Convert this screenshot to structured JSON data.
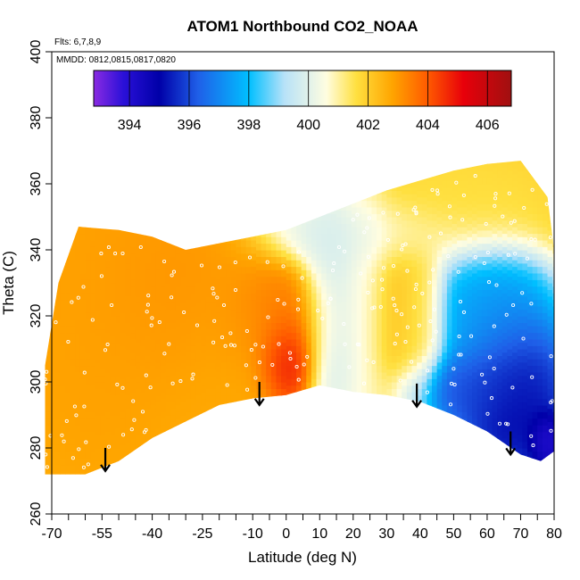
{
  "chart_data": {
    "type": "heatmap",
    "title": "ATOM1 Northbound CO2_NOAA",
    "annotations": [
      "Flts: 6,7,8,9",
      "MMDD: 0812,0815,0817,0820"
    ],
    "xlabel": "Latitude (deg N)",
    "ylabel": "Theta (C)",
    "xlim": [
      -70,
      80
    ],
    "ylim": [
      260,
      400
    ],
    "x_ticks_major": [
      -70,
      -55,
      -40,
      -25,
      -10,
      0,
      10,
      20,
      30,
      40,
      50,
      60,
      70,
      80
    ],
    "x_ticks_minor": [
      -65,
      -60,
      -50,
      -45,
      -35,
      -30,
      -20,
      -15,
      -5,
      5,
      15,
      25,
      35,
      45,
      55,
      65,
      75
    ],
    "y_ticks": [
      260,
      280,
      300,
      320,
      340,
      360,
      380,
      400
    ],
    "colorbar": {
      "ticks": [
        394,
        396,
        398,
        400,
        402,
        404,
        406
      ],
      "range": [
        392.8,
        406.8
      ],
      "stops": [
        {
          "v": 392.8,
          "c": "#8a2be2"
        },
        {
          "v": 393.8,
          "c": "#2a10d8"
        },
        {
          "v": 395.0,
          "c": "#0000a8"
        },
        {
          "v": 396.3,
          "c": "#1f5fe8"
        },
        {
          "v": 398.0,
          "c": "#00bfff"
        },
        {
          "v": 399.2,
          "c": "#b8e2f8"
        },
        {
          "v": 400.6,
          "c": "#fffde0"
        },
        {
          "v": 401.6,
          "c": "#ffe040"
        },
        {
          "v": 402.8,
          "c": "#ffa500"
        },
        {
          "v": 404.0,
          "c": "#ff5a00"
        },
        {
          "v": 405.2,
          "c": "#e8000a"
        },
        {
          "v": 406.8,
          "c": "#a01010"
        }
      ]
    },
    "field": {
      "boundary_bottom": [
        [
          -72,
          272
        ],
        [
          -60,
          272
        ],
        [
          -50,
          276
        ],
        [
          -40,
          283
        ],
        [
          -30,
          288
        ],
        [
          -20,
          293
        ],
        [
          -10,
          295
        ],
        [
          0,
          296
        ],
        [
          10,
          299
        ],
        [
          20,
          297
        ],
        [
          30,
          296
        ],
        [
          40,
          294
        ],
        [
          50,
          290
        ],
        [
          60,
          285
        ],
        [
          70,
          278
        ],
        [
          76,
          276
        ],
        [
          80,
          279
        ]
      ],
      "boundary_top": [
        [
          -72,
          305
        ],
        [
          -68,
          330
        ],
        [
          -62,
          347
        ],
        [
          -50,
          346
        ],
        [
          -40,
          344
        ],
        [
          -30,
          340
        ],
        [
          -20,
          342
        ],
        [
          -10,
          344
        ],
        [
          0,
          346
        ],
        [
          10,
          350
        ],
        [
          20,
          354
        ],
        [
          30,
          358
        ],
        [
          40,
          361
        ],
        [
          50,
          364
        ],
        [
          60,
          366
        ],
        [
          70,
          367
        ],
        [
          78,
          356
        ],
        [
          80,
          340
        ]
      ],
      "blobs": [
        {
          "x": -55,
          "y": 320,
          "sx": 15,
          "sy": 28,
          "v": 402.9
        },
        {
          "x": -35,
          "y": 330,
          "sx": 13,
          "sy": 14,
          "v": 403.1
        },
        {
          "x": -15,
          "y": 310,
          "sx": 10,
          "sy": 16,
          "v": 402.8
        },
        {
          "x": 0,
          "y": 307,
          "sx": 4.5,
          "sy": 7,
          "v": 405.5
        },
        {
          "x": -3,
          "y": 320,
          "sx": 9,
          "sy": 9,
          "v": 403.6
        },
        {
          "x": 14,
          "y": 325,
          "sx": 5,
          "sy": 22,
          "v": 399.6
        },
        {
          "x": 24,
          "y": 330,
          "sx": 4,
          "sy": 20,
          "v": 400.4
        },
        {
          "x": 32,
          "y": 325,
          "sx": 5,
          "sy": 15,
          "v": 402.2
        },
        {
          "x": 40,
          "y": 320,
          "sx": 4,
          "sy": 14,
          "v": 401.8
        },
        {
          "x": 20,
          "y": 345,
          "sx": 14,
          "sy": 6,
          "v": 399.7
        },
        {
          "x": 50,
          "y": 355,
          "sx": 18,
          "sy": 9,
          "v": 401.6
        },
        {
          "x": 60,
          "y": 320,
          "sx": 10,
          "sy": 12,
          "v": 397.2
        },
        {
          "x": 68,
          "y": 295,
          "sx": 9,
          "sy": 15,
          "v": 394.5
        },
        {
          "x": 55,
          "y": 298,
          "sx": 10,
          "sy": 6,
          "v": 395.8
        },
        {
          "x": 78,
          "y": 282,
          "sx": 3,
          "sy": 5,
          "v": 393.5
        }
      ],
      "background_value": 402.4
    },
    "arrows": [
      {
        "x": -54,
        "y_top": 280,
        "y_bottom": 273
      },
      {
        "x": -8,
        "y_top": 300,
        "y_bottom": 293
      },
      {
        "x": 39,
        "y_top": 299.5,
        "y_bottom": 292.5
      },
      {
        "x": 67,
        "y_top": 285,
        "y_bottom": 278
      }
    ]
  }
}
